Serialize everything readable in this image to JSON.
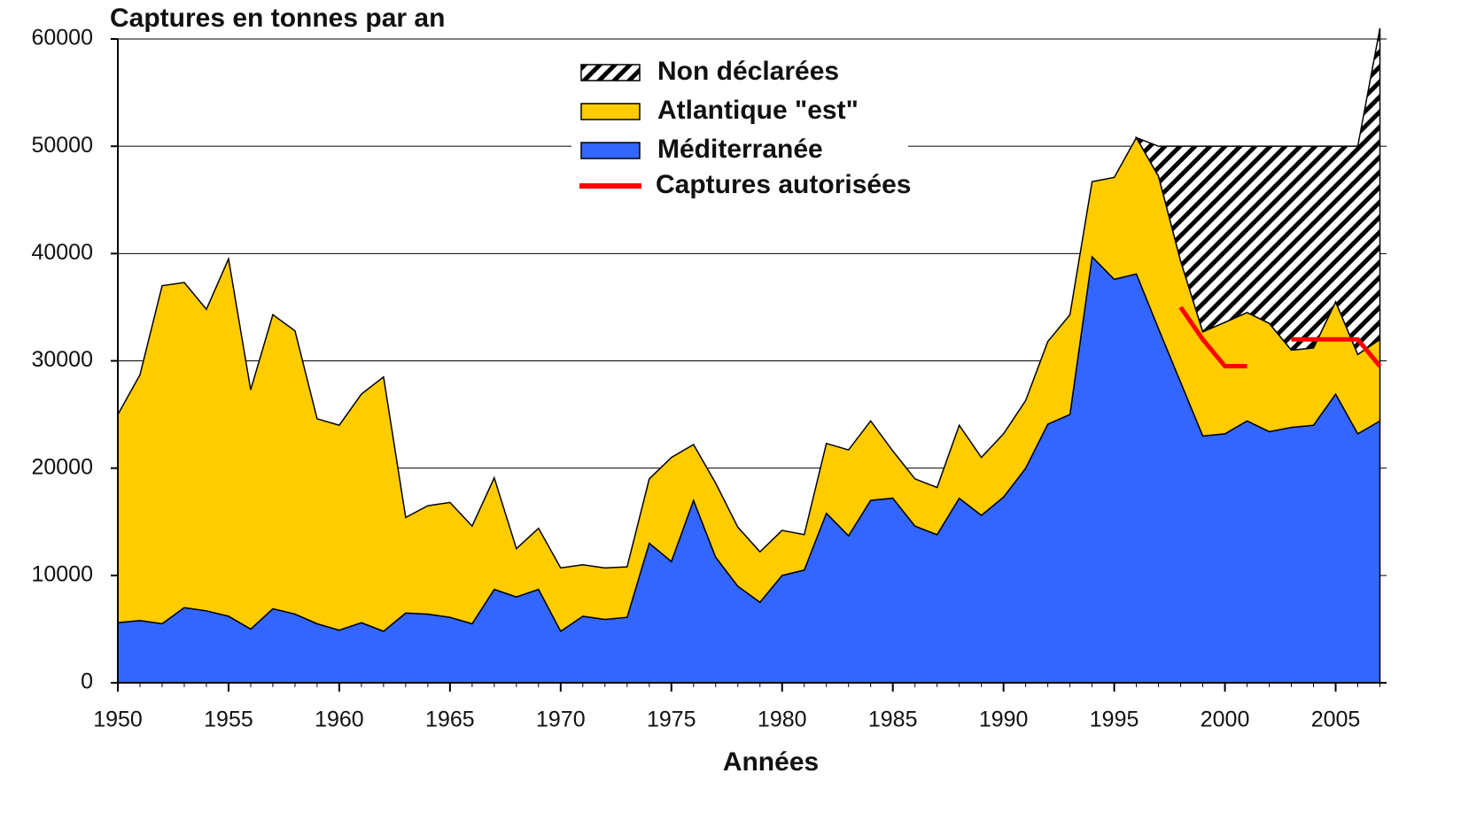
{
  "chart_data": {
    "type": "stacked_area",
    "title": "Captures en tonnes par an",
    "x_label": "Années",
    "x": [
      1950,
      1951,
      1952,
      1953,
      1954,
      1955,
      1956,
      1957,
      1958,
      1959,
      1960,
      1961,
      1962,
      1963,
      1964,
      1965,
      1966,
      1967,
      1968,
      1969,
      1970,
      1971,
      1972,
      1973,
      1974,
      1975,
      1976,
      1977,
      1978,
      1979,
      1980,
      1981,
      1982,
      1983,
      1984,
      1985,
      1986,
      1987,
      1988,
      1989,
      1990,
      1991,
      1992,
      1993,
      1994,
      1995,
      1996,
      1997,
      1998,
      1999,
      2000,
      2001,
      2002,
      2003,
      2004,
      2005,
      2006,
      2007
    ],
    "series": [
      {
        "name": "Méditerranée",
        "color": "#3366ff",
        "values": [
          5600,
          5800,
          5500,
          7000,
          6700,
          6200,
          5000,
          6900,
          6400,
          5500,
          4900,
          5600,
          4800,
          6500,
          6400,
          6100,
          5500,
          8700,
          8000,
          8700,
          4800,
          6200,
          5900,
          6100,
          13000,
          11300,
          17000,
          11700,
          9000,
          7500,
          10000,
          10500,
          15800,
          13700,
          17000,
          17200,
          14600,
          13800,
          17200,
          15600,
          17300,
          20000,
          24100,
          25000,
          39700,
          37600,
          38100,
          33000,
          28000,
          23000,
          23200,
          24400,
          23400,
          23800,
          24000,
          26900,
          23200,
          24400
        ]
      },
      {
        "name": "Atlantique \"est\"",
        "color": "#ffcc00",
        "values": [
          19400,
          22900,
          31500,
          30300,
          28100,
          33300,
          22300,
          27400,
          26400,
          19100,
          19100,
          21300,
          23700,
          8900,
          10100,
          10700,
          9100,
          10400,
          4500,
          5700,
          5900,
          4800,
          4800,
          4700,
          6000,
          9700,
          5200,
          6900,
          5500,
          4700,
          4200,
          3300,
          6500,
          8000,
          7400,
          4400,
          4400,
          4400,
          6800,
          5400,
          5900,
          6300,
          7700,
          9300,
          7000,
          9500,
          12700,
          14200,
          11300,
          9700,
          10400,
          10100,
          10100,
          7200,
          7200,
          8600,
          7400,
          7600
        ]
      },
      {
        "name": "Non déclarées",
        "color": "#000000",
        "pattern": "hatch",
        "values": [
          null,
          null,
          null,
          null,
          null,
          null,
          null,
          null,
          null,
          null,
          null,
          null,
          null,
          null,
          null,
          null,
          null,
          null,
          null,
          null,
          null,
          null,
          null,
          null,
          null,
          null,
          null,
          null,
          null,
          null,
          null,
          null,
          null,
          null,
          null,
          null,
          null,
          null,
          null,
          null,
          null,
          null,
          null,
          null,
          null,
          null,
          0,
          2800,
          10700,
          17300,
          16400,
          15500,
          16500,
          19000,
          18800,
          14500,
          19400,
          29000
        ]
      }
    ],
    "line": {
      "name": "Captures autorisées",
      "color": "#ff0000",
      "values": [
        null,
        null,
        null,
        null,
        null,
        null,
        null,
        null,
        null,
        null,
        null,
        null,
        null,
        null,
        null,
        null,
        null,
        null,
        null,
        null,
        null,
        null,
        null,
        null,
        null,
        null,
        null,
        null,
        null,
        null,
        null,
        null,
        null,
        null,
        null,
        null,
        null,
        null,
        null,
        null,
        null,
        null,
        null,
        null,
        null,
        null,
        null,
        null,
        35000,
        32000,
        29500,
        29500,
        null,
        32000,
        32000,
        32000,
        32000,
        29500
      ]
    },
    "xlim": [
      1950,
      2007.3
    ],
    "ylim": [
      0,
      60000
    ],
    "xticks": [
      1950,
      1955,
      1960,
      1965,
      1970,
      1975,
      1980,
      1985,
      1990,
      1995,
      2000,
      2005
    ],
    "yticks": [
      0,
      10000,
      20000,
      30000,
      40000,
      50000,
      60000
    ],
    "grid": true
  }
}
